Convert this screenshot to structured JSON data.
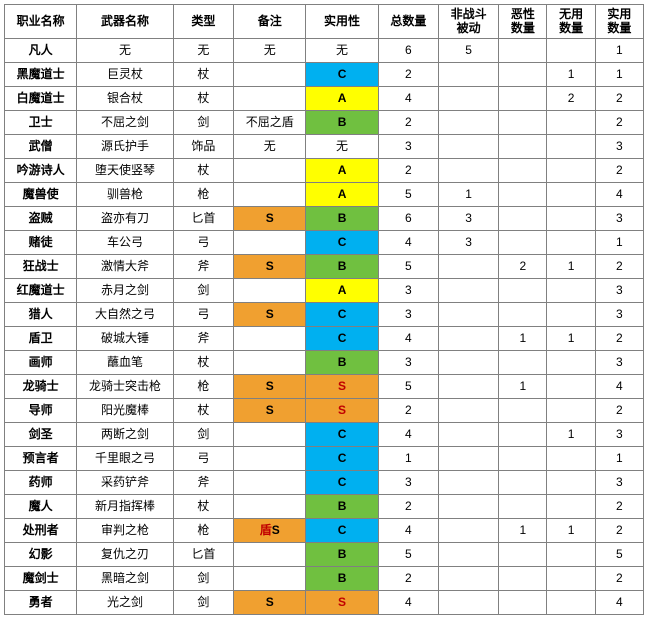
{
  "colors": {
    "S_bg": "#f0a030",
    "A_bg": "#ffff00",
    "B_bg": "#70c040",
    "C_bg": "#00b0f0",
    "none": "#ffffff",
    "rating_text": "#000000",
    "S_text": "#c00000",
    "border": "#808080"
  },
  "styles": {
    "header_fontsize": 12,
    "cell_fontsize": 12,
    "rating_font_weight": "bold"
  },
  "headers": [
    "职业名称",
    "武器名称",
    "类型",
    "备注",
    "实用性",
    "总数量",
    "非战斗被动",
    "恶性数量",
    "无用数量",
    "实用数量"
  ],
  "rows": [
    {
      "job": "凡人",
      "weapon": "无",
      "type": "无",
      "note": "无",
      "rating": "无",
      "total": "6",
      "nc": "5",
      "bad": "",
      "useless": "",
      "useful": "1"
    },
    {
      "job": "黑魔道士",
      "weapon": "巨灵杖",
      "type": "杖",
      "note": "",
      "rating": "C",
      "total": "2",
      "nc": "",
      "bad": "",
      "useless": "1",
      "useful": "1"
    },
    {
      "job": "白魔道士",
      "weapon": "银合杖",
      "type": "杖",
      "note": "",
      "rating": "A",
      "total": "4",
      "nc": "",
      "bad": "",
      "useless": "2",
      "useful": "2"
    },
    {
      "job": "卫士",
      "weapon": "不屈之剑",
      "type": "剑",
      "note": "不屈之盾",
      "rating": "B",
      "total": "2",
      "nc": "",
      "bad": "",
      "useless": "",
      "useful": "2"
    },
    {
      "job": "武僧",
      "weapon": "源氏护手",
      "type": "饰品",
      "note": "无",
      "rating": "无",
      "total": "3",
      "nc": "",
      "bad": "",
      "useless": "",
      "useful": "3"
    },
    {
      "job": "吟游诗人",
      "weapon": "堕天使竖琴",
      "type": "杖",
      "note": "",
      "rating": "A",
      "total": "2",
      "nc": "",
      "bad": "",
      "useless": "",
      "useful": "2"
    },
    {
      "job": "魔兽使",
      "weapon": "驯兽枪",
      "type": "枪",
      "note": "",
      "rating": "A",
      "total": "5",
      "nc": "1",
      "bad": "",
      "useless": "",
      "useful": "4"
    },
    {
      "job": "盗贼",
      "weapon": "盗亦有刀",
      "type": "匕首",
      "note": "S",
      "rating": "B",
      "total": "6",
      "nc": "3",
      "bad": "",
      "useless": "",
      "useful": "3"
    },
    {
      "job": "赌徒",
      "weapon": "车公弓",
      "type": "弓",
      "note": "",
      "rating": "C",
      "total": "4",
      "nc": "3",
      "bad": "",
      "useless": "",
      "useful": "1"
    },
    {
      "job": "狂战士",
      "weapon": "激情大斧",
      "type": "斧",
      "note": "S",
      "rating": "B",
      "total": "5",
      "nc": "",
      "bad": "2",
      "useless": "1",
      "useful": "2"
    },
    {
      "job": "红魔道士",
      "weapon": "赤月之剑",
      "type": "剑",
      "note": "",
      "rating": "A",
      "total": "3",
      "nc": "",
      "bad": "",
      "useless": "",
      "useful": "3"
    },
    {
      "job": "猎人",
      "weapon": "大自然之弓",
      "type": "弓",
      "note": "S",
      "rating": "C",
      "total": "3",
      "nc": "",
      "bad": "",
      "useless": "",
      "useful": "3"
    },
    {
      "job": "盾卫",
      "weapon": "破城大锤",
      "type": "斧",
      "note": "",
      "rating": "C",
      "total": "4",
      "nc": "",
      "bad": "1",
      "useless": "1",
      "useful": "2"
    },
    {
      "job": "画师",
      "weapon": "蘸血笔",
      "type": "杖",
      "note": "",
      "rating": "B",
      "total": "3",
      "nc": "",
      "bad": "",
      "useless": "",
      "useful": "3"
    },
    {
      "job": "龙骑士",
      "weapon": "龙骑士突击枪",
      "type": "枪",
      "note": "S",
      "rating": "S",
      "total": "5",
      "nc": "",
      "bad": "1",
      "useless": "",
      "useful": "4"
    },
    {
      "job": "导师",
      "weapon": "阳光魔棒",
      "type": "杖",
      "note": "S",
      "rating": "S",
      "total": "2",
      "nc": "",
      "bad": "",
      "useless": "",
      "useful": "2"
    },
    {
      "job": "剑圣",
      "weapon": "两断之剑",
      "type": "剑",
      "note": "",
      "rating": "C",
      "total": "4",
      "nc": "",
      "bad": "",
      "useless": "1",
      "useful": "3"
    },
    {
      "job": "预言者",
      "weapon": "千里眼之弓",
      "type": "弓",
      "note": "",
      "rating": "C",
      "total": "1",
      "nc": "",
      "bad": "",
      "useless": "",
      "useful": "1"
    },
    {
      "job": "药师",
      "weapon": "采药铲斧",
      "type": "斧",
      "note": "",
      "rating": "C",
      "total": "3",
      "nc": "",
      "bad": "",
      "useless": "",
      "useful": "3"
    },
    {
      "job": "魔人",
      "weapon": "新月指挥棒",
      "type": "杖",
      "note": "",
      "rating": "B",
      "total": "2",
      "nc": "",
      "bad": "",
      "useless": "",
      "useful": "2"
    },
    {
      "job": "处刑者",
      "weapon": "审判之枪",
      "type": "枪",
      "note": "盾S",
      "rating": "C",
      "total": "4",
      "nc": "",
      "bad": "1",
      "useless": "1",
      "useful": "2"
    },
    {
      "job": "幻影",
      "weapon": "复仇之刃",
      "type": "匕首",
      "note": "",
      "rating": "B",
      "total": "5",
      "nc": "",
      "bad": "",
      "useless": "",
      "useful": "5"
    },
    {
      "job": "魔剑士",
      "weapon": "黑暗之剑",
      "type": "剑",
      "note": "",
      "rating": "B",
      "total": "2",
      "nc": "",
      "bad": "",
      "useless": "",
      "useful": "2"
    },
    {
      "job": "勇者",
      "weapon": "光之剑",
      "type": "剑",
      "note": "S",
      "rating": "S",
      "total": "4",
      "nc": "",
      "bad": "",
      "useless": "",
      "useful": "4"
    }
  ]
}
